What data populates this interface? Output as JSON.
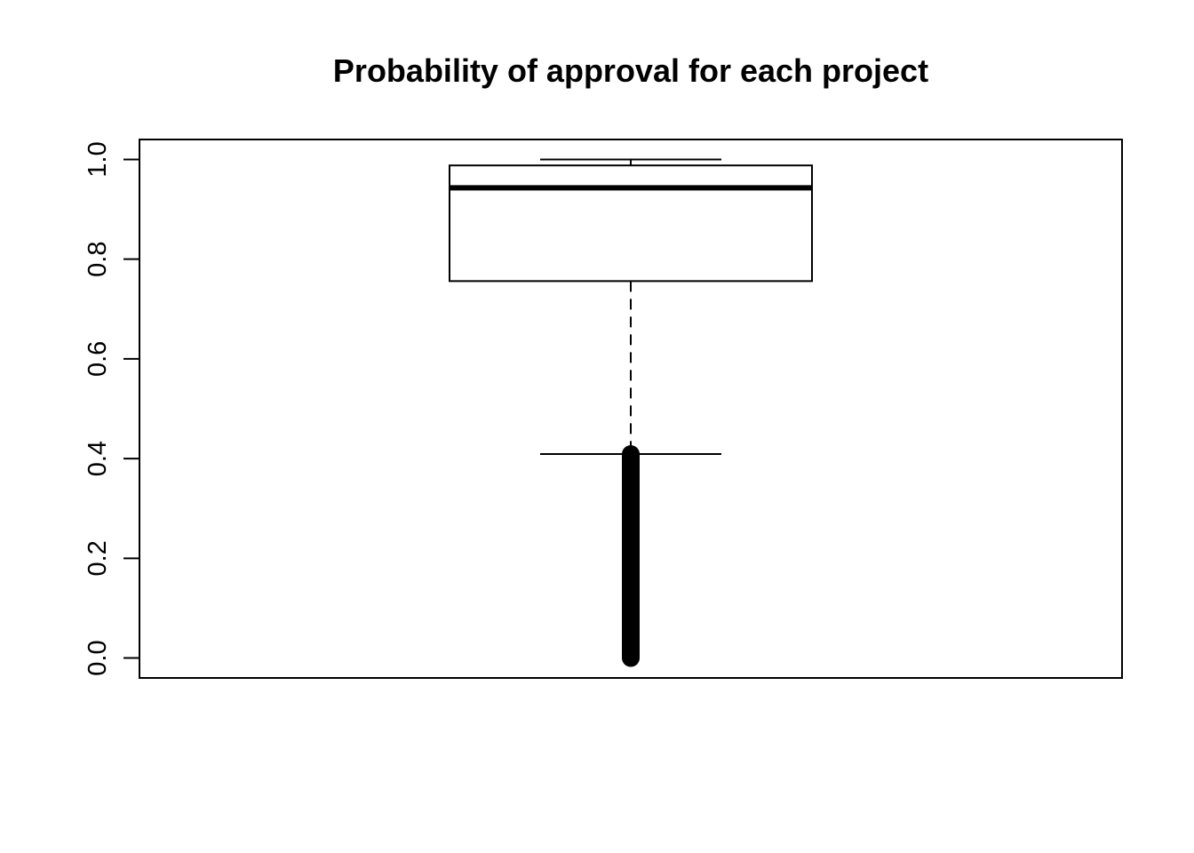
{
  "chart_data": {
    "type": "boxplot",
    "title": "Probability of approval for each project",
    "xlabel": "",
    "ylabel": "",
    "ylim": [
      -0.04,
      1.04
    ],
    "y_ticks": [
      0.0,
      0.2,
      0.4,
      0.6,
      0.8,
      1.0
    ],
    "y_tick_labels": [
      "0.0",
      "0.2",
      "0.4",
      "0.6",
      "0.8",
      "1.0"
    ],
    "grid": false,
    "legend": "none",
    "box": {
      "whisker_low": 0.409,
      "q1": 0.756,
      "median": 0.943,
      "q3": 0.988,
      "whisker_high": 1.0,
      "outlier_min": 0.0,
      "outlier_max": 0.409
    },
    "colors": {
      "line": "#000000",
      "fill": "#ffffff",
      "outliers": "#000000"
    }
  }
}
